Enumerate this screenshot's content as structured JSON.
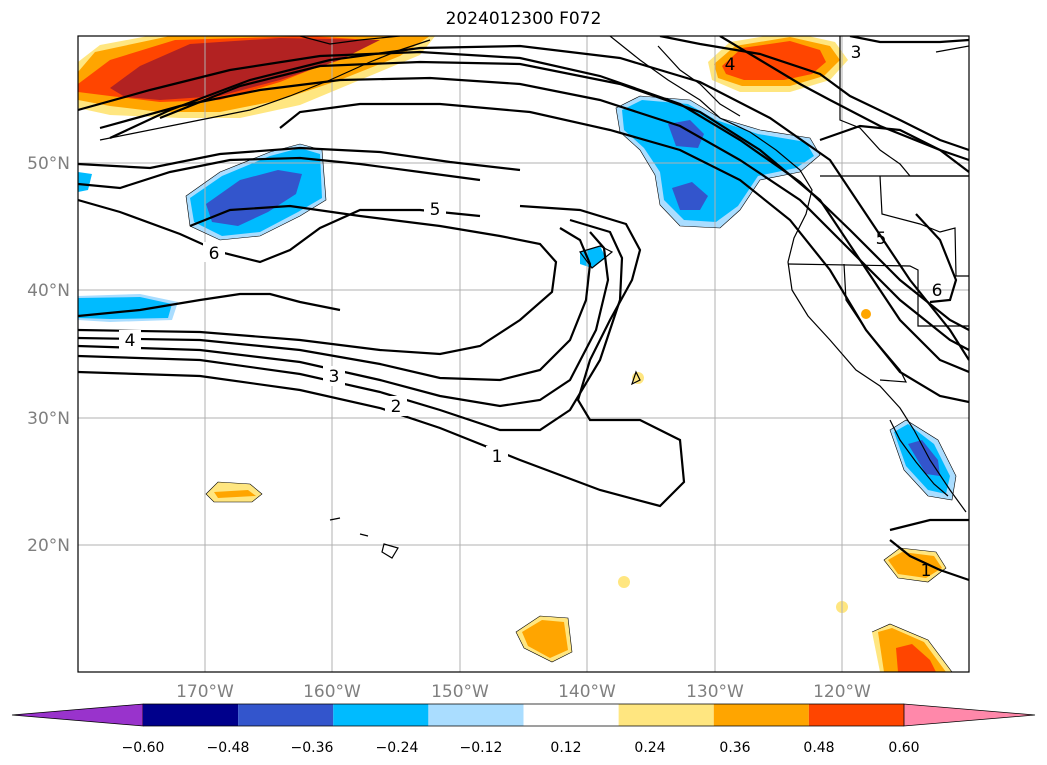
{
  "title": "2024012300 F072",
  "map": {
    "projection": "cylindrical",
    "lon_range": [
      -180,
      -110
    ],
    "lat_range": [
      10,
      60
    ],
    "lat_ticks": [
      "50°N",
      "40°N",
      "30°N",
      "20°N"
    ],
    "lon_ticks": [
      "170°W",
      "160°W",
      "150°W",
      "140°W",
      "130°W",
      "120°W"
    ],
    "grid": true,
    "contour_labels": [
      "5",
      "6",
      "4",
      "3",
      "2",
      "1",
      "4",
      "3",
      "5",
      "6",
      "1"
    ]
  },
  "colorbar": {
    "ticks": [
      "−0.60",
      "−0.48",
      "−0.36",
      "−0.24",
      "−0.12",
      "0.12",
      "0.24",
      "0.36",
      "0.48",
      "0.60"
    ],
    "colors": [
      "#9933cc",
      "#00008b",
      "#3355cc",
      "#00bbff",
      "#aaddff",
      "#ffffff",
      "#ffe680",
      "#ffa500",
      "#ff4500",
      "#b22222",
      "#ff88aa"
    ],
    "extend": "both"
  }
}
